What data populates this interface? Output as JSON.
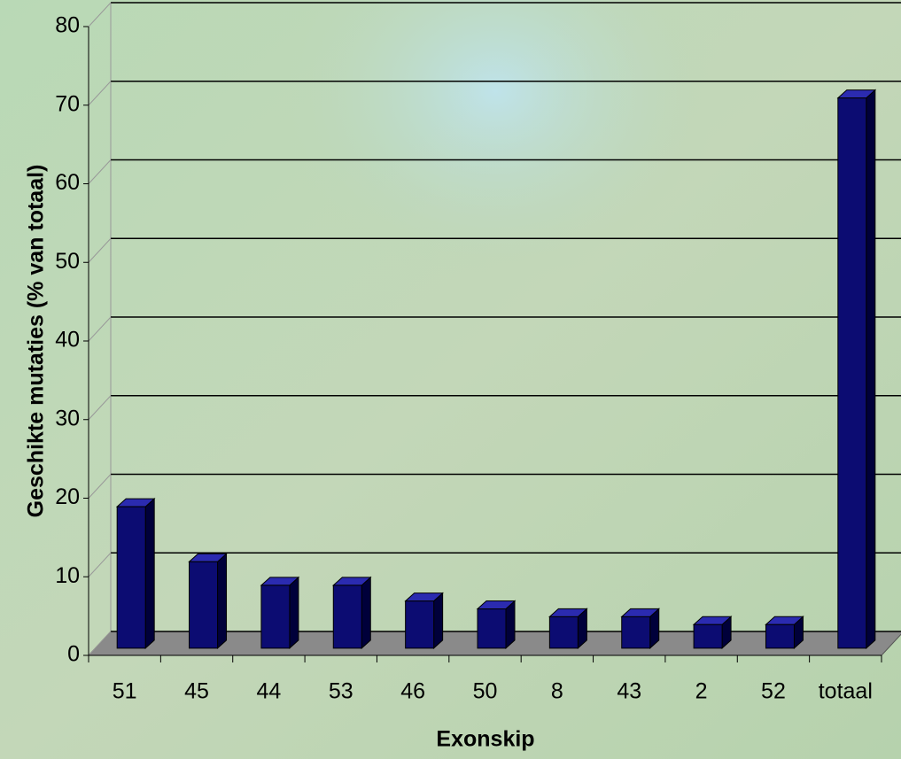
{
  "chart_data": {
    "type": "bar3d",
    "y_label": "Geschikte mutaties (% van totaal)",
    "x_label": "Exonskip",
    "categories": [
      "51",
      "45",
      "44",
      "53",
      "46",
      "50",
      "8",
      "43",
      "2",
      "52",
      "totaal"
    ],
    "values": [
      18,
      11,
      8,
      8,
      6,
      5,
      4,
      4,
      3,
      3,
      70
    ],
    "color": "#0c0c72",
    "ylim": [
      0,
      80
    ],
    "yticks": [
      0,
      10,
      20,
      30,
      40,
      50,
      60,
      70,
      80
    ],
    "grid": true
  }
}
